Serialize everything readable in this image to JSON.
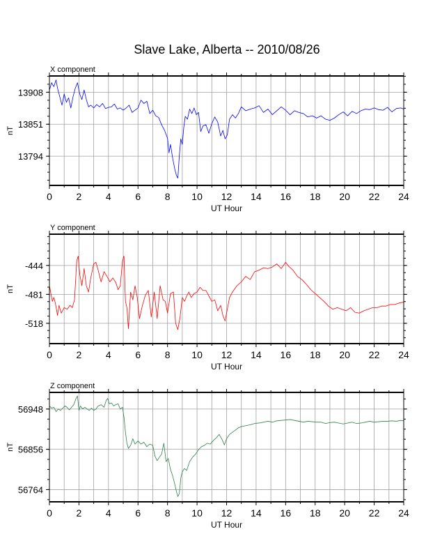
{
  "title": "Slave Lake, Alberta -- 2010/08/26",
  "colors": {
    "background": "#ffffff",
    "grid": "#a0a0a0",
    "axis": "#000000"
  },
  "chart_data": [
    {
      "type": "line",
      "panel_title": "X component",
      "xlabel": "UT Hour",
      "ylabel": "nT",
      "xlim": [
        0,
        24
      ],
      "ylim": [
        13742,
        13937
      ],
      "x_ticks": [
        0,
        2,
        4,
        6,
        8,
        10,
        12,
        14,
        16,
        18,
        20,
        22,
        24
      ],
      "y_ticks": [
        13794,
        13851,
        13908
      ],
      "grid": true,
      "series": [
        {
          "color": "#0000ff",
          "x": [
            0,
            0.15,
            0.3,
            0.45,
            0.55,
            0.7,
            0.85,
            1.0,
            1.15,
            1.3,
            1.45,
            1.6,
            1.75,
            1.9,
            2.05,
            2.2,
            2.35,
            2.5,
            2.65,
            2.8,
            3.0,
            3.2,
            3.4,
            3.6,
            3.8,
            4.0,
            4.2,
            4.4,
            4.6,
            4.8,
            5.0,
            5.2,
            5.4,
            5.6,
            5.8,
            6.0,
            6.2,
            6.4,
            6.6,
            6.8,
            7.0,
            7.2,
            7.4,
            7.6,
            7.8,
            8.0,
            8.1,
            8.2,
            8.35,
            8.5,
            8.6,
            8.7,
            8.8,
            8.9,
            9.0,
            9.1,
            9.2,
            9.35,
            9.5,
            9.65,
            9.8,
            9.95,
            10.1,
            10.25,
            10.4,
            10.6,
            10.8,
            11.0,
            11.2,
            11.4,
            11.6,
            11.75,
            11.9,
            12.05,
            12.2,
            12.4,
            12.6,
            12.8,
            13.0,
            13.3,
            13.6,
            13.9,
            14.2,
            14.5,
            14.8,
            15.1,
            15.4,
            15.7,
            16.0,
            16.3,
            16.6,
            16.9,
            17.2,
            17.5,
            17.8,
            18.1,
            18.4,
            18.7,
            19.0,
            19.3,
            19.6,
            19.9,
            20.2,
            20.5,
            20.8,
            21.1,
            21.4,
            21.7,
            22.0,
            22.3,
            22.6,
            22.9,
            23.2,
            23.5,
            23.8,
            24.0
          ],
          "values": [
            13912,
            13925,
            13918,
            13930,
            13915,
            13900,
            13885,
            13905,
            13890,
            13898,
            13880,
            13900,
            13915,
            13925,
            13905,
            13895,
            13912,
            13895,
            13882,
            13885,
            13880,
            13886,
            13882,
            13888,
            13879,
            13881,
            13882,
            13887,
            13878,
            13880,
            13876,
            13880,
            13885,
            13872,
            13876,
            13880,
            13894,
            13888,
            13892,
            13870,
            13876,
            13866,
            13863,
            13850,
            13840,
            13826,
            13800,
            13815,
            13790,
            13770,
            13760,
            13755,
            13795,
            13825,
            13815,
            13845,
            13865,
            13860,
            13878,
            13870,
            13880,
            13868,
            13872,
            13838,
            13848,
            13850,
            13835,
            13852,
            13864,
            13855,
            13830,
            13840,
            13825,
            13832,
            13860,
            13868,
            13862,
            13870,
            13882,
            13875,
            13878,
            13880,
            13884,
            13872,
            13878,
            13868,
            13875,
            13882,
            13876,
            13868,
            13875,
            13872,
            13870,
            13864,
            13866,
            13862,
            13866,
            13860,
            13858,
            13862,
            13868,
            13873,
            13866,
            13874,
            13870,
            13875,
            13878,
            13877,
            13880,
            13877,
            13876,
            13881,
            13873,
            13879,
            13880,
            13878
          ]
        }
      ]
    },
    {
      "type": "line",
      "panel_title": "Y component",
      "xlabel": "UT Hour",
      "ylabel": "nT",
      "xlim": [
        0,
        24
      ],
      "ylim": [
        -544,
        -404
      ],
      "x_ticks": [
        0,
        2,
        4,
        6,
        8,
        10,
        12,
        14,
        16,
        18,
        20,
        22,
        24
      ],
      "y_ticks": [
        -444,
        -481,
        -518
      ],
      "grid": true,
      "series": [
        {
          "color": "#ff0000",
          "x": [
            0,
            0.1,
            0.2,
            0.3,
            0.4,
            0.55,
            0.65,
            0.8,
            1.0,
            1.2,
            1.4,
            1.55,
            1.7,
            1.85,
            1.95,
            2.05,
            2.2,
            2.35,
            2.5,
            2.65,
            2.8,
            3.0,
            3.15,
            3.3,
            3.5,
            3.7,
            3.9,
            4.1,
            4.3,
            4.5,
            4.65,
            4.8,
            4.95,
            5.05,
            5.15,
            5.25,
            5.35,
            5.5,
            5.65,
            5.8,
            5.95,
            6.1,
            6.3,
            6.5,
            6.7,
            6.9,
            7.1,
            7.3,
            7.5,
            7.7,
            7.85,
            8.0,
            8.2,
            8.4,
            8.55,
            8.7,
            8.85,
            9.0,
            9.15,
            9.3,
            9.45,
            9.6,
            9.8,
            10.0,
            10.2,
            10.4,
            10.6,
            10.8,
            11.0,
            11.2,
            11.4,
            11.6,
            11.75,
            11.9,
            12.05,
            12.2,
            12.4,
            12.7,
            13.0,
            13.3,
            13.6,
            13.9,
            14.2,
            14.5,
            14.8,
            15.1,
            15.4,
            15.7,
            16.0,
            16.2,
            16.5,
            16.8,
            17.1,
            17.4,
            17.7,
            18.0,
            18.3,
            18.6,
            18.9,
            19.2,
            19.5,
            19.8,
            20.1,
            20.4,
            20.7,
            21.0,
            21.3,
            21.6,
            21.9,
            22.2,
            22.5,
            22.8,
            23.1,
            23.4,
            23.7,
            24.0
          ],
          "values": [
            -470,
            -480,
            -490,
            -485,
            -492,
            -508,
            -495,
            -505,
            -498,
            -500,
            -495,
            -498,
            -488,
            -438,
            -432,
            -455,
            -470,
            -448,
            -470,
            -478,
            -460,
            -442,
            -440,
            -450,
            -465,
            -452,
            -458,
            -465,
            -460,
            -466,
            -475,
            -470,
            -438,
            -432,
            -490,
            -498,
            -525,
            -478,
            -488,
            -470,
            -485,
            -512,
            -495,
            -482,
            -476,
            -510,
            -478,
            -512,
            -470,
            -488,
            -490,
            -505,
            -480,
            -478,
            -518,
            -526,
            -510,
            -485,
            -490,
            -483,
            -478,
            -485,
            -480,
            -478,
            -472,
            -476,
            -476,
            -483,
            -490,
            -488,
            -502,
            -495,
            -508,
            -515,
            -500,
            -485,
            -478,
            -470,
            -465,
            -458,
            -462,
            -452,
            -450,
            -447,
            -448,
            -446,
            -442,
            -448,
            -440,
            -445,
            -450,
            -458,
            -462,
            -468,
            -475,
            -480,
            -485,
            -490,
            -496,
            -500,
            -498,
            -500,
            -502,
            -498,
            -504,
            -505,
            -502,
            -500,
            -498,
            -498,
            -496,
            -496,
            -494,
            -494,
            -492,
            -491
          ]
        }
      ]
    },
    {
      "type": "line",
      "panel_title": "Z component",
      "xlabel": "UT Hour",
      "ylabel": "nT",
      "xlim": [
        0,
        24
      ],
      "ylim": [
        56736,
        56986
      ],
      "x_ticks": [
        0,
        2,
        4,
        6,
        8,
        10,
        12,
        14,
        16,
        18,
        20,
        22,
        24
      ],
      "y_ticks": [
        56764,
        56856,
        56948
      ],
      "grid": true,
      "series": [
        {
          "color": "#2e7d4f",
          "x": [
            0,
            0.15,
            0.3,
            0.45,
            0.6,
            0.75,
            0.9,
            1.05,
            1.2,
            1.35,
            1.5,
            1.65,
            1.8,
            1.9,
            2.0,
            2.1,
            2.25,
            2.4,
            2.55,
            2.7,
            2.85,
            3.0,
            3.15,
            3.3,
            3.5,
            3.7,
            3.85,
            3.95,
            4.05,
            4.2,
            4.35,
            4.5,
            4.65,
            4.8,
            4.95,
            5.05,
            5.15,
            5.25,
            5.35,
            5.5,
            5.65,
            5.8,
            6.0,
            6.2,
            6.4,
            6.6,
            6.8,
            7.0,
            7.15,
            7.3,
            7.45,
            7.6,
            7.75,
            7.9,
            8.05,
            8.2,
            8.35,
            8.5,
            8.6,
            8.7,
            8.8,
            8.9,
            9.0,
            9.15,
            9.3,
            9.5,
            9.7,
            9.9,
            10.1,
            10.3,
            10.5,
            10.7,
            10.9,
            11.1,
            11.3,
            11.5,
            11.7,
            11.85,
            12.0,
            12.2,
            12.4,
            12.6,
            12.8,
            13.0,
            13.3,
            13.6,
            13.9,
            14.2,
            14.5,
            14.8,
            15.1,
            15.4,
            15.7,
            16.0,
            16.3,
            16.6,
            16.9,
            17.2,
            17.5,
            17.8,
            18.1,
            18.4,
            18.7,
            19.0,
            19.3,
            19.6,
            19.9,
            20.2,
            20.5,
            20.8,
            21.1,
            21.4,
            21.7,
            22.0,
            22.3,
            22.6,
            22.9,
            23.2,
            23.5,
            23.8,
            24.0
          ],
          "values": [
            56955,
            56950,
            56952,
            56942,
            56948,
            56945,
            56950,
            56955,
            56952,
            56946,
            56952,
            56958,
            56972,
            56978,
            56945,
            56955,
            56948,
            56952,
            56948,
            56945,
            56950,
            56945,
            56948,
            56955,
            56958,
            56952,
            56968,
            56972,
            56960,
            56962,
            56955,
            56958,
            56960,
            56948,
            56952,
            56930,
            56895,
            56870,
            56858,
            56865,
            56880,
            56868,
            56875,
            56868,
            56872,
            56862,
            56868,
            56865,
            56840,
            56830,
            56838,
            56845,
            56870,
            56828,
            56835,
            56810,
            56795,
            56775,
            56760,
            56748,
            56755,
            56790,
            56805,
            56812,
            56808,
            56828,
            56838,
            56845,
            56855,
            56862,
            56865,
            56870,
            56868,
            56876,
            56882,
            56890,
            56878,
            56866,
            56880,
            56890,
            56895,
            56900,
            56905,
            56908,
            56910,
            56912,
            56915,
            56916,
            56918,
            56920,
            56918,
            56921,
            56922,
            56923,
            56924,
            56922,
            56920,
            56918,
            56920,
            56919,
            56918,
            56918,
            56915,
            56917,
            56918,
            56916,
            56914,
            56916,
            56918,
            56915,
            56916,
            56918,
            56920,
            56918,
            56919,
            56920,
            56920,
            56921,
            56920,
            56922,
            56921
          ]
        }
      ]
    }
  ]
}
